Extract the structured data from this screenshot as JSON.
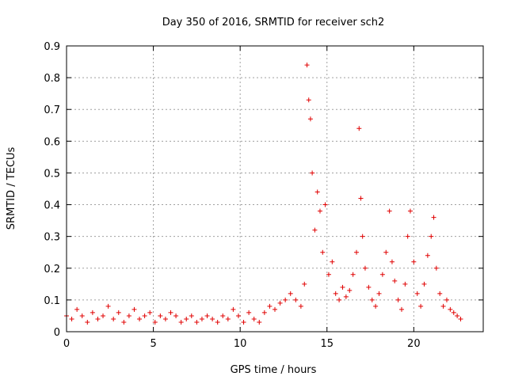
{
  "chart_data": {
    "type": "scatter",
    "title": "Day 350 of 2016, SRMTID for receiver sch2",
    "xlabel": "GPS time / hours",
    "ylabel": "SRMTID / TECUs",
    "xlim": [
      0,
      24
    ],
    "ylim": [
      0,
      0.9
    ],
    "xticks": [
      "0",
      "5",
      "10",
      "15",
      "20"
    ],
    "yticks": [
      "0",
      "0.1",
      "0.2",
      "0.3",
      "0.4",
      "0.5",
      "0.6",
      "0.7",
      "0.8",
      "0.9"
    ],
    "grid": true,
    "marker": "+",
    "color": "#e00000",
    "series": [
      {
        "name": "sch2",
        "x": [
          0.0,
          0.3,
          0.6,
          0.9,
          1.2,
          1.5,
          1.8,
          2.1,
          2.4,
          2.7,
          3.0,
          3.3,
          3.6,
          3.9,
          4.2,
          4.5,
          4.8,
          5.1,
          5.4,
          5.7,
          6.0,
          6.3,
          6.6,
          6.9,
          7.2,
          7.5,
          7.8,
          8.1,
          8.4,
          8.7,
          9.0,
          9.3,
          9.6,
          9.9,
          10.2,
          10.5,
          10.8,
          11.1,
          11.4,
          11.7,
          12.0,
          12.3,
          12.6,
          12.9,
          13.2,
          13.5,
          13.7,
          13.85,
          13.95,
          14.05,
          14.15,
          14.3,
          14.45,
          14.6,
          14.75,
          14.9,
          15.1,
          15.3,
          15.5,
          15.7,
          15.9,
          16.1,
          16.3,
          16.5,
          16.7,
          16.85,
          16.95,
          17.05,
          17.2,
          17.4,
          17.6,
          17.8,
          18.0,
          18.2,
          18.4,
          18.6,
          18.75,
          18.9,
          19.1,
          19.3,
          19.5,
          19.65,
          19.8,
          20.0,
          20.2,
          20.4,
          20.6,
          20.8,
          21.0,
          21.15,
          21.3,
          21.5,
          21.7,
          21.9,
          22.1,
          22.3,
          22.5,
          22.7
        ],
        "y": [
          0.05,
          0.04,
          0.07,
          0.05,
          0.03,
          0.06,
          0.04,
          0.05,
          0.08,
          0.04,
          0.06,
          0.03,
          0.05,
          0.07,
          0.04,
          0.05,
          0.06,
          0.03,
          0.05,
          0.04,
          0.06,
          0.05,
          0.03,
          0.04,
          0.05,
          0.03,
          0.04,
          0.05,
          0.04,
          0.03,
          0.05,
          0.04,
          0.07,
          0.05,
          0.03,
          0.06,
          0.04,
          0.03,
          0.06,
          0.08,
          0.07,
          0.09,
          0.1,
          0.12,
          0.1,
          0.08,
          0.15,
          0.84,
          0.73,
          0.67,
          0.5,
          0.32,
          0.44,
          0.38,
          0.25,
          0.4,
          0.18,
          0.22,
          0.12,
          0.1,
          0.14,
          0.11,
          0.13,
          0.18,
          0.25,
          0.64,
          0.42,
          0.3,
          0.2,
          0.14,
          0.1,
          0.08,
          0.12,
          0.18,
          0.25,
          0.38,
          0.22,
          0.16,
          0.1,
          0.07,
          0.15,
          0.3,
          0.38,
          0.22,
          0.12,
          0.08,
          0.15,
          0.24,
          0.3,
          0.36,
          0.2,
          0.12,
          0.08,
          0.1,
          0.07,
          0.06,
          0.05,
          0.04
        ]
      }
    ]
  }
}
